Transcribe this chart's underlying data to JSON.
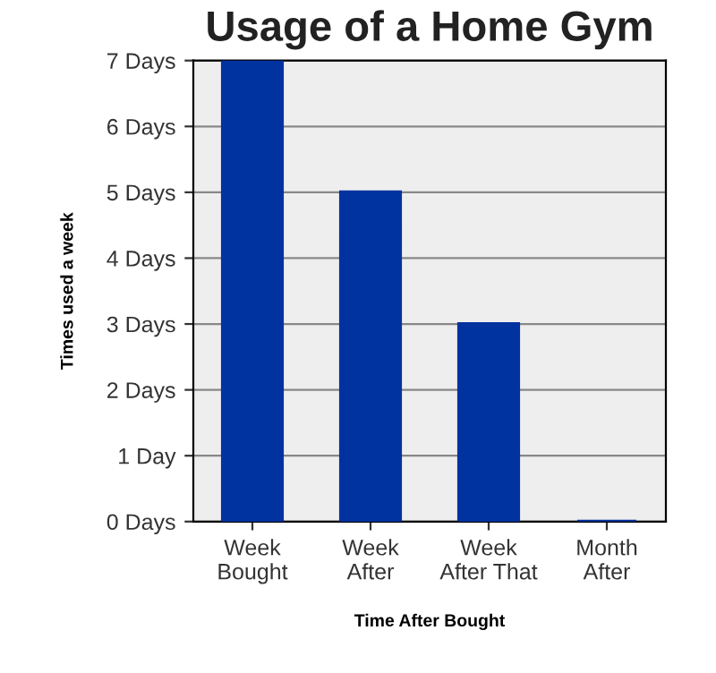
{
  "chart_data": {
    "type": "bar",
    "title": "Usage of a Home Gym",
    "xlabel": "Time After Bought",
    "ylabel": "Times used a week",
    "categories": [
      "Week\nBought",
      "Week\nAfter",
      "Week\nAfter That",
      "Month\nAfter"
    ],
    "values": [
      7,
      5,
      3,
      0
    ],
    "color": "#0033a0",
    "ylim": [
      0,
      7
    ],
    "yticks": [
      {
        "value": 0,
        "label": "0 Days"
      },
      {
        "value": 1,
        "label": "1 Day"
      },
      {
        "value": 2,
        "label": "2 Days"
      },
      {
        "value": 3,
        "label": "3 Days"
      },
      {
        "value": 4,
        "label": "4 Days"
      },
      {
        "value": 5,
        "label": "5 Days"
      },
      {
        "value": 6,
        "label": "6 Days"
      },
      {
        "value": 7,
        "label": "7 Days"
      }
    ],
    "grid": "y"
  }
}
